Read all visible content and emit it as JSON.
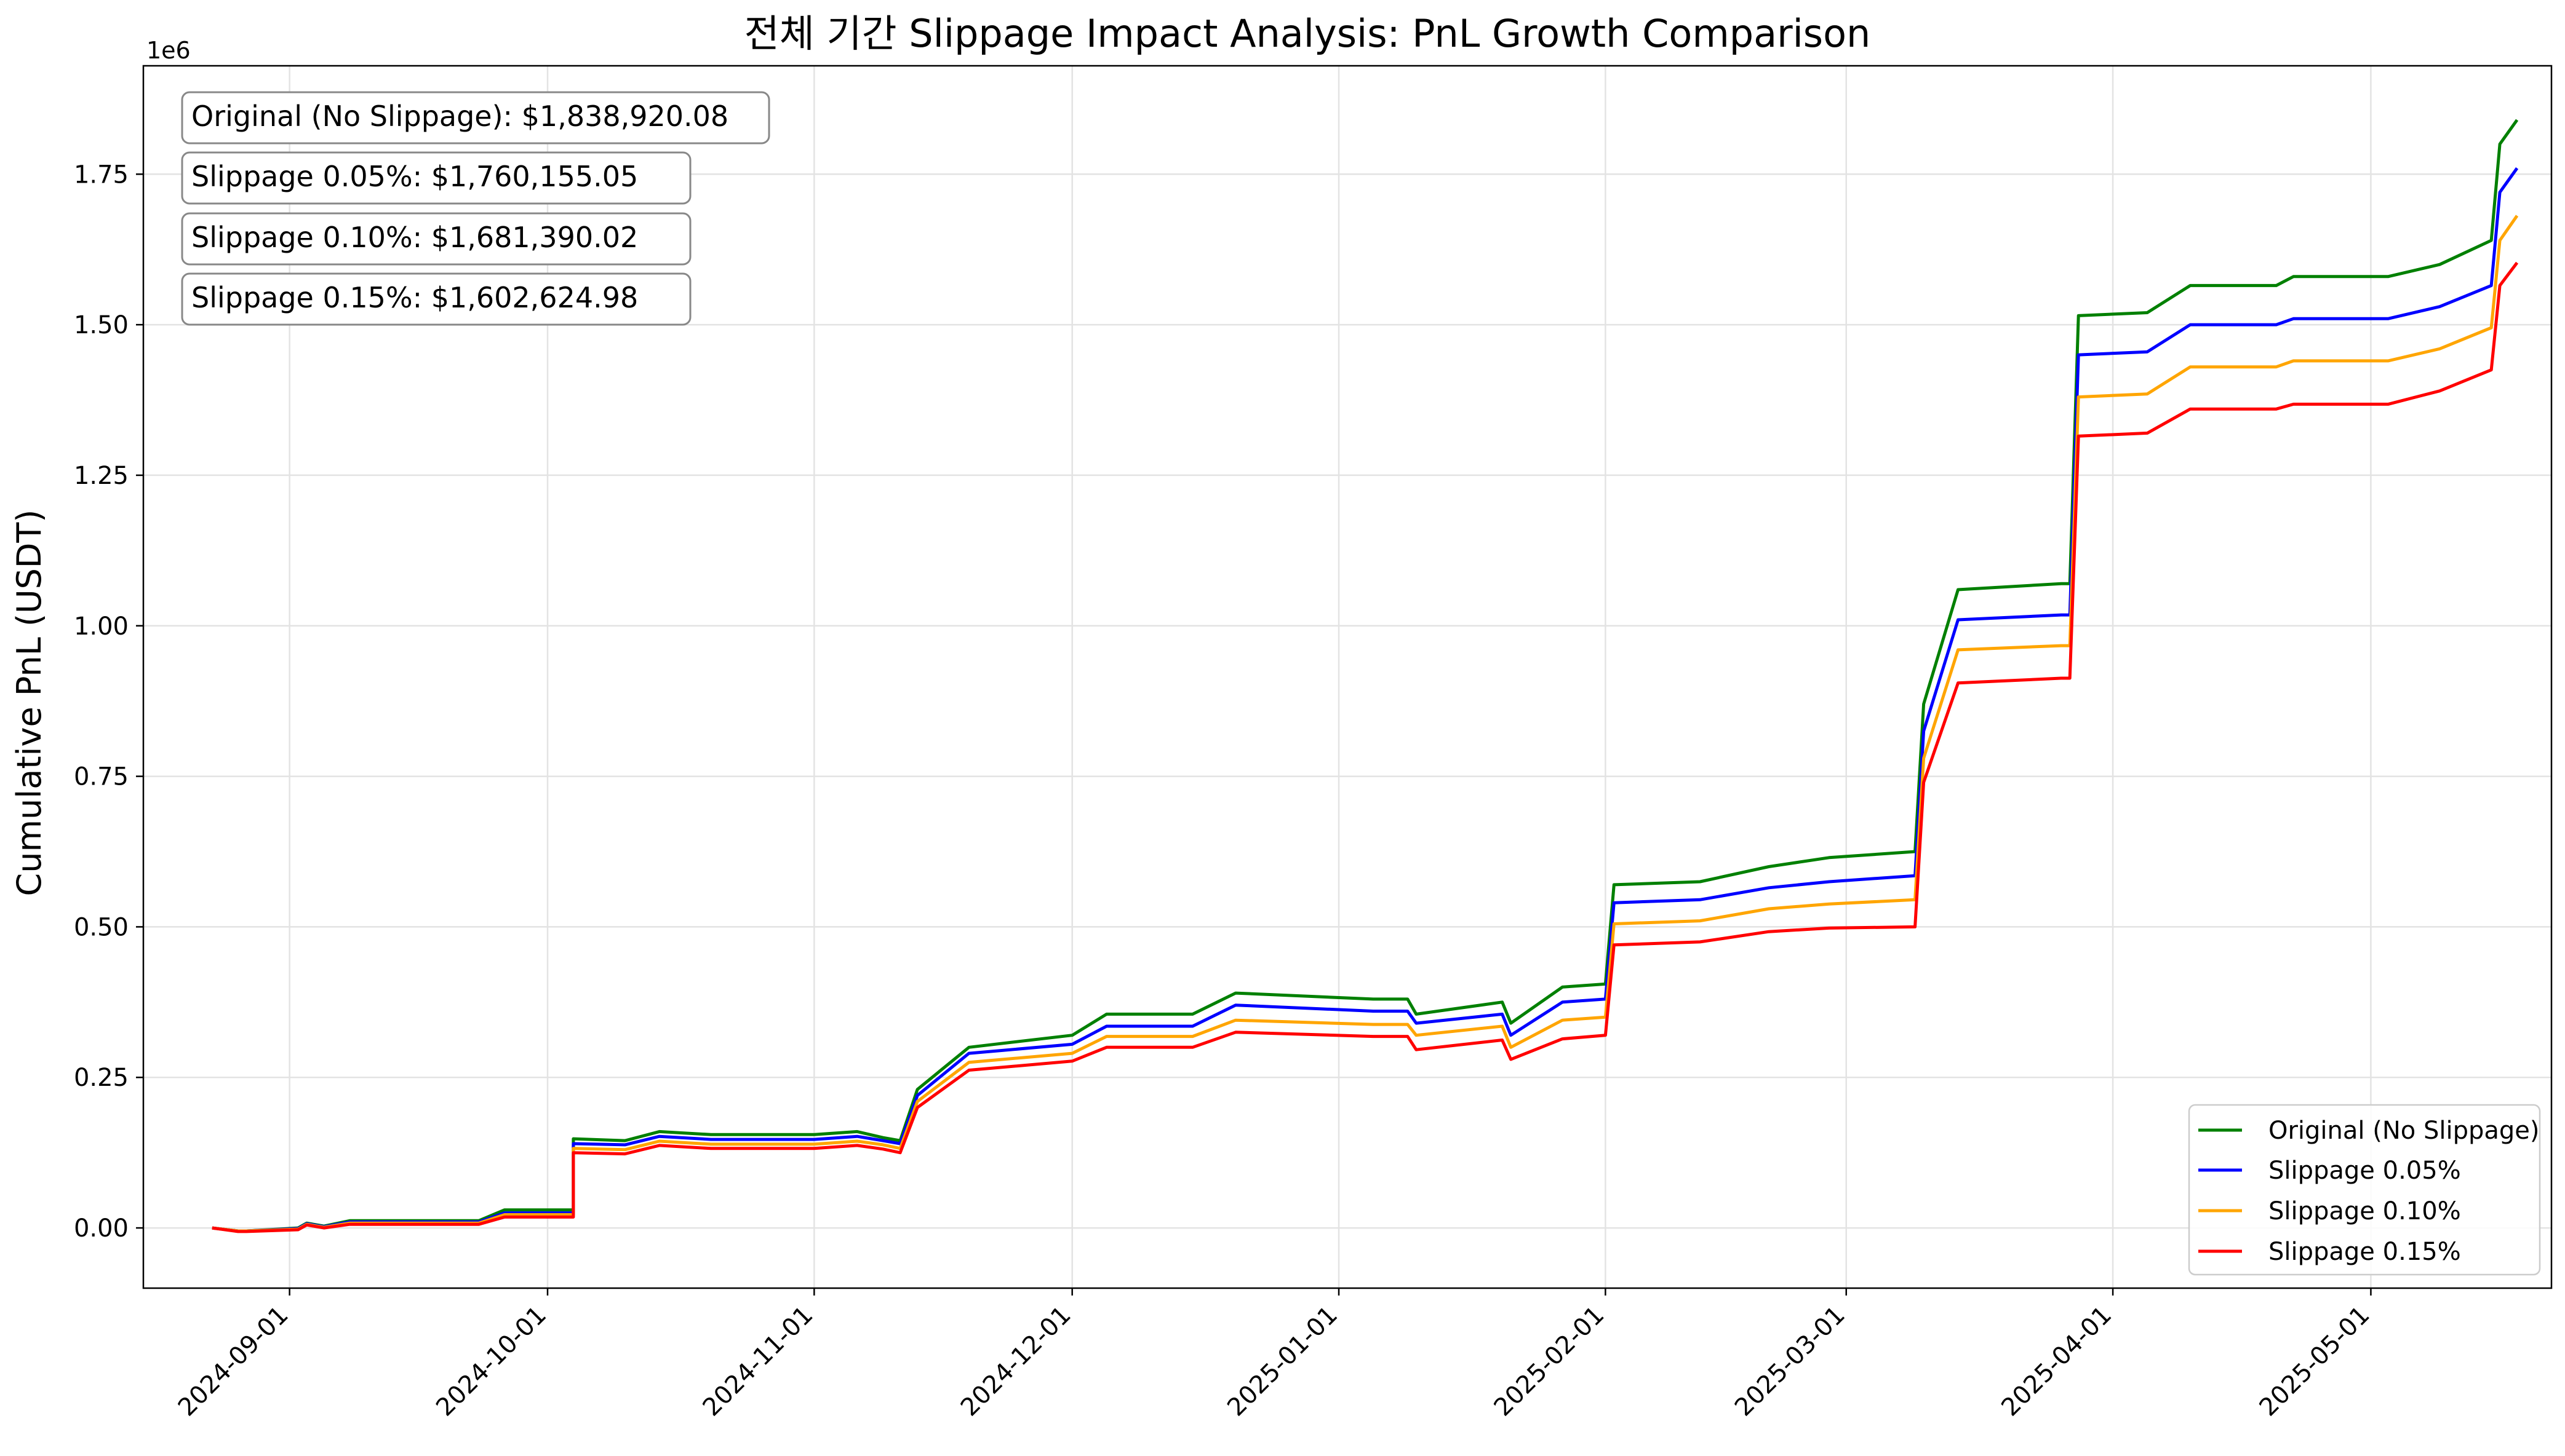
{
  "chart_data": {
    "type": "line",
    "title": "전체 기간 Slippage Impact Analysis: PnL Growth Comparison",
    "xlabel": "",
    "ylabel": "Cumulative PnL (USDT)",
    "y_offset_label": "1e6",
    "ylim": [
      -100000,
      1930000
    ],
    "xlim": [
      "2024-08-15",
      "2025-05-22"
    ],
    "y_ticks": [
      0,
      250000,
      500000,
      750000,
      1000000,
      1250000,
      1500000,
      1750000
    ],
    "y_tick_labels": [
      "0.00",
      "0.25",
      "0.50",
      "0.75",
      "1.00",
      "1.25",
      "1.50",
      "1.75"
    ],
    "x_ticks": [
      "2024-09-01",
      "2024-10-01",
      "2024-11-01",
      "2024-12-01",
      "2025-01-01",
      "2025-02-01",
      "2025-03-01",
      "2025-04-01",
      "2025-05-01"
    ],
    "grid": true,
    "legend_position": "lower-right",
    "x": [
      "2024-08-23",
      "2024-08-26",
      "2024-08-27",
      "2024-09-02",
      "2024-09-03",
      "2024-09-05",
      "2024-09-08",
      "2024-09-23",
      "2024-09-26",
      "2024-10-01",
      "2024-10-04",
      "2024-10-04",
      "2024-10-10",
      "2024-10-14",
      "2024-10-20",
      "2024-11-01",
      "2024-11-06",
      "2024-11-09",
      "2024-11-11",
      "2024-11-13",
      "2024-11-19",
      "2024-12-01",
      "2024-12-05",
      "2024-12-15",
      "2024-12-20",
      "2025-01-05",
      "2025-01-09",
      "2025-01-10",
      "2025-01-20",
      "2025-01-21",
      "2025-01-27",
      "2025-02-01",
      "2025-02-02",
      "2025-02-12",
      "2025-02-20",
      "2025-02-27",
      "2025-03-09",
      "2025-03-10",
      "2025-03-14",
      "2025-03-26",
      "2025-03-27",
      "2025-03-28",
      "2025-04-05",
      "2025-04-10",
      "2025-04-20",
      "2025-04-22",
      "2025-05-03",
      "2025-05-09",
      "2025-05-15",
      "2025-05-16",
      "2025-05-18"
    ],
    "series": [
      {
        "name": "Original (No Slippage)",
        "color": "#008000",
        "values": [
          0,
          -5000,
          -5000,
          0,
          8000,
          3000,
          12000,
          12000,
          30000,
          30000,
          30000,
          148000,
          145000,
          160000,
          155000,
          155000,
          160000,
          150000,
          145000,
          230000,
          300000,
          320000,
          355000,
          355000,
          390000,
          380000,
          380000,
          355000,
          375000,
          340000,
          400000,
          405000,
          570000,
          575000,
          600000,
          615000,
          625000,
          870000,
          1060000,
          1070000,
          1070000,
          1515000,
          1520000,
          1565000,
          1565000,
          1580000,
          1580000,
          1600000,
          1640000,
          1800000,
          1840000
        ]
      },
      {
        "name": "Slippage 0.05%",
        "color": "#0000ff",
        "values": [
          0,
          -5000,
          -5000,
          -1000,
          7000,
          2000,
          10000,
          10000,
          25000,
          25000,
          25000,
          140000,
          138000,
          152000,
          147000,
          147000,
          152000,
          145000,
          140000,
          220000,
          290000,
          305000,
          335000,
          335000,
          370000,
          360000,
          360000,
          340000,
          355000,
          320000,
          375000,
          380000,
          540000,
          545000,
          565000,
          575000,
          585000,
          825000,
          1010000,
          1018000,
          1018000,
          1450000,
          1455000,
          1500000,
          1500000,
          1510000,
          1510000,
          1530000,
          1565000,
          1720000,
          1760000
        ]
      },
      {
        "name": "Slippage 0.10%",
        "color": "#ffa500",
        "values": [
          0,
          -5000,
          -5000,
          -2000,
          6000,
          1000,
          8000,
          8000,
          22000,
          22000,
          22000,
          132000,
          130000,
          144000,
          139000,
          139000,
          144000,
          138000,
          132000,
          210000,
          275000,
          290000,
          318000,
          318000,
          345000,
          338000,
          338000,
          320000,
          335000,
          300000,
          345000,
          350000,
          505000,
          510000,
          530000,
          538000,
          545000,
          780000,
          960000,
          967000,
          967000,
          1380000,
          1385000,
          1430000,
          1430000,
          1440000,
          1440000,
          1460000,
          1495000,
          1640000,
          1681000
        ]
      },
      {
        "name": "Slippage 0.15%",
        "color": "#ff0000",
        "values": [
          0,
          -6000,
          -6000,
          -3000,
          5000,
          0,
          6000,
          6000,
          18000,
          18000,
          18000,
          125000,
          123000,
          137000,
          132000,
          132000,
          137000,
          131000,
          125000,
          200000,
          262000,
          277000,
          300000,
          300000,
          325000,
          318000,
          318000,
          296000,
          312000,
          280000,
          314000,
          320000,
          470000,
          475000,
          492000,
          498000,
          500000,
          740000,
          905000,
          913000,
          913000,
          1315000,
          1320000,
          1360000,
          1360000,
          1368000,
          1368000,
          1390000,
          1425000,
          1565000,
          1603000
        ]
      }
    ],
    "annotations": [
      "Original (No Slippage): $1,838,920.08",
      "Slippage 0.05%: $1,760,155.05",
      "Slippage 0.10%: $1,681,390.02",
      "Slippage 0.15%: $1,602,624.98"
    ]
  }
}
